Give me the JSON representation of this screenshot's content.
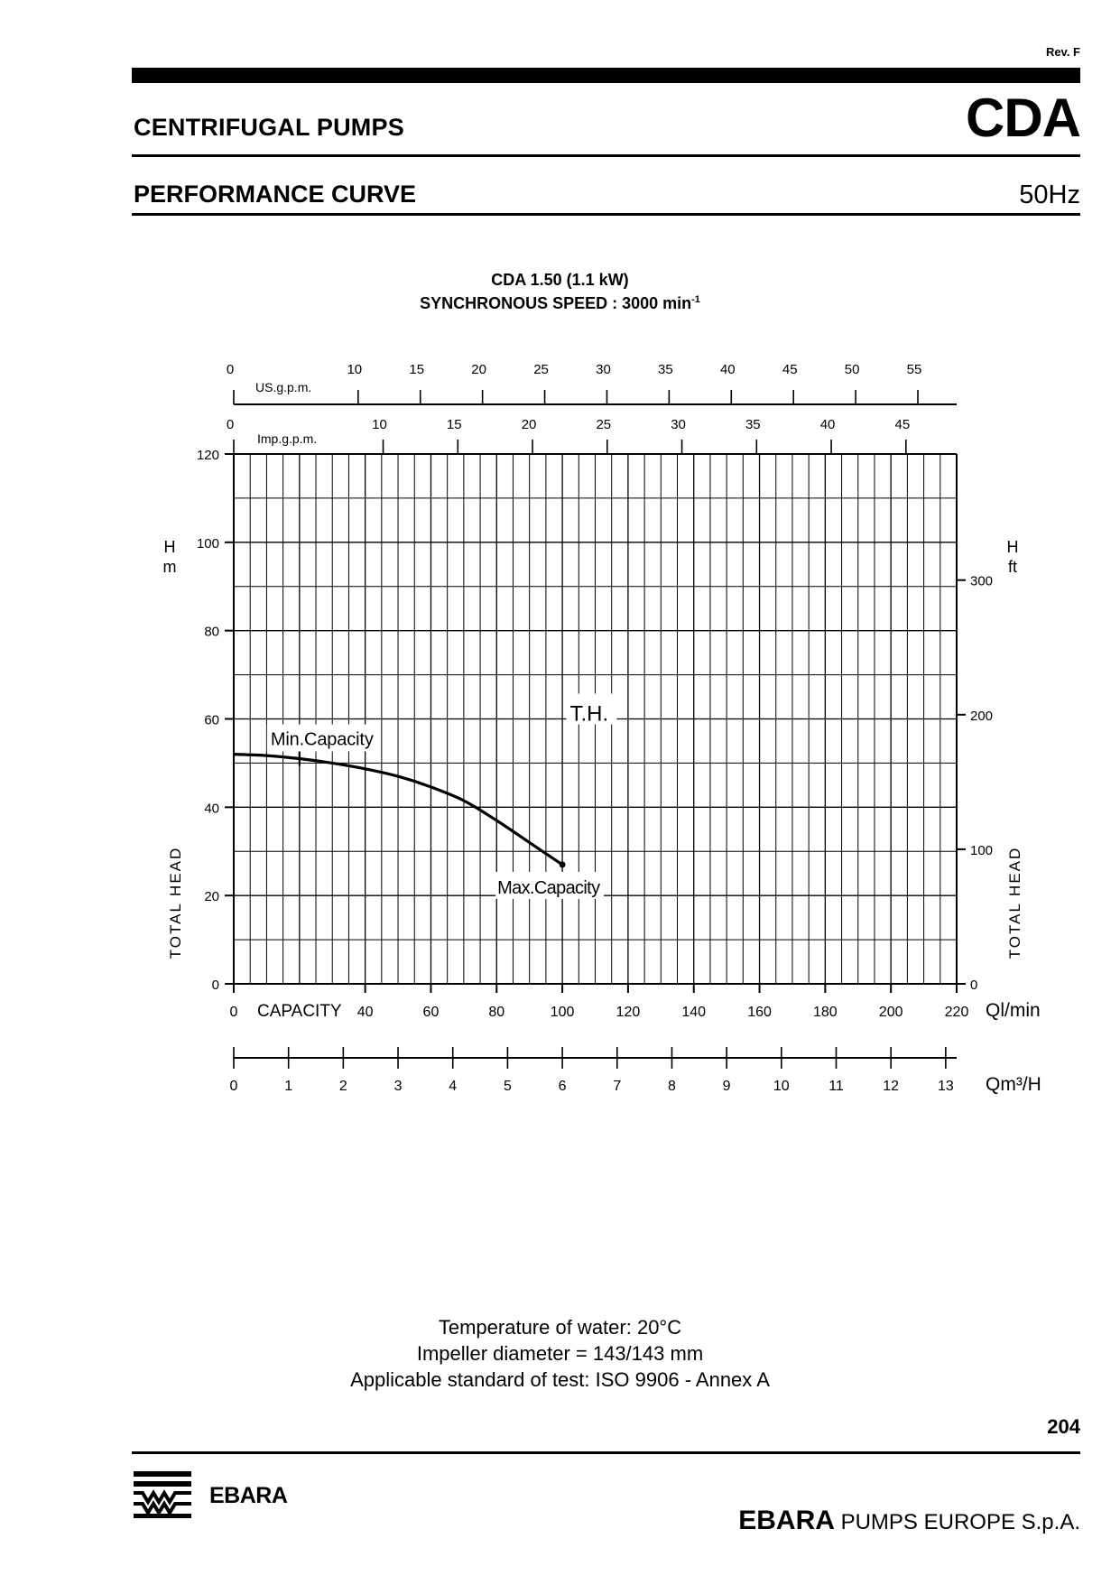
{
  "header": {
    "revision": "Rev. F",
    "category": "CENTRIFUGAL PUMPS",
    "model": "CDA",
    "section": "PERFORMANCE CURVE",
    "frequency": "50Hz"
  },
  "chart_title": {
    "line1": "CDA 1.50 (1.1 kW)",
    "line2_prefix": "SYNCHRONOUS SPEED : 3000 min",
    "line2_sup": "-1"
  },
  "chart_data": {
    "type": "line",
    "series": [
      {
        "name": "T.H.",
        "x": [
          0,
          10,
          20,
          30,
          40,
          50,
          60,
          70,
          80,
          90,
          100
        ],
        "y": [
          52,
          51.7,
          51,
          50,
          48.7,
          47,
          44.6,
          41.5,
          37,
          32,
          27
        ]
      }
    ],
    "annotations": [
      {
        "text": "Min.Capacity",
        "x": 20,
        "y": 51
      },
      {
        "text": "Max.Capacity",
        "x": 100,
        "y": 27
      }
    ],
    "series_label": "T.H.",
    "xlim": [
      0,
      220
    ],
    "ylim": [
      0,
      120
    ],
    "grid": true,
    "y_left": {
      "label": "TOTAL HEAD",
      "unit_h": "H",
      "unit": "m",
      "ticks": [
        0,
        20,
        40,
        60,
        80,
        100,
        120
      ]
    },
    "y_right": {
      "label": "TOTAL HEAD",
      "unit_h": "H",
      "unit": "ft",
      "ticks": [
        0,
        100,
        200,
        300
      ]
    },
    "x_bottom": {
      "label": "CAPACITY",
      "unit": "Ql/min",
      "ticks": [
        0,
        40,
        60,
        80,
        100,
        120,
        140,
        160,
        180,
        200,
        220
      ]
    },
    "x_m3h": {
      "unit": "Qm³/H",
      "ticks": [
        0,
        1,
        2,
        3,
        4,
        5,
        6,
        7,
        8,
        9,
        10,
        11,
        12,
        13
      ]
    },
    "x_usgpm": {
      "unit": "US.g.p.m.",
      "ticks": [
        0,
        10,
        15,
        20,
        25,
        30,
        35,
        40,
        45,
        50,
        55
      ]
    },
    "x_impgpm": {
      "unit": "Imp.g.p.m.",
      "ticks": [
        0,
        10,
        15,
        20,
        25,
        30,
        35,
        40,
        45
      ]
    }
  },
  "notes": [
    "Temperature of water: 20°C",
    "Impeller diameter = 143/143 mm",
    "Applicable standard of test: ISO 9906 - Annex A"
  ],
  "footer": {
    "page_number": "204",
    "logo_text": "EBARA",
    "company_bold": "EBARA",
    "company_rest": " PUMPS EUROPE S.p.A."
  }
}
